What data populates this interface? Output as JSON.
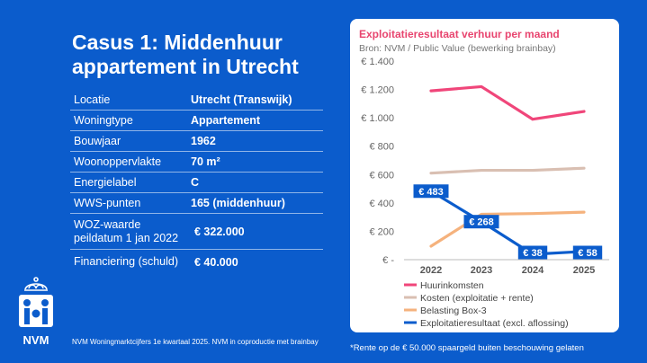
{
  "title": "Casus 1: Middenhuur appartement in Utrecht",
  "table": [
    {
      "label": "Locatie",
      "value": "Utrecht (Transwijk)"
    },
    {
      "label": "Woningtype",
      "value": "Appartement"
    },
    {
      "label": "Bouwjaar",
      "value": "1962"
    },
    {
      "label": "Woonoppervlakte",
      "value": "70 m²"
    },
    {
      "label": "Energielabel",
      "value": "C"
    },
    {
      "label": "WWS-punten",
      "value": "165 (middenhuur)"
    },
    {
      "label": "WOZ-waarde peildatum 1 jan 2022",
      "value": "€ 322.000"
    },
    {
      "label": "Financiering (schuld)",
      "value": "€ 40.000"
    }
  ],
  "footnote_left": "NVM Woningmarktcijfers 1e kwartaal 2025. NVM in coproductie met brainbay",
  "footnote_right": "*Rente op de € 50.000 spaargeld buiten beschouwing gelaten",
  "logo_text": "NVM",
  "colors": {
    "background": "#0b5ccc",
    "huur": "#f0467a",
    "kosten": "#d9bfb2",
    "belasting": "#f5b27d",
    "resultaat": "#0b5ccc"
  },
  "chart_data": {
    "type": "line",
    "title": "Exploitatieresultaat verhuur per maand",
    "subtitle": "Bron: NVM / Public Value (bewerking brainbay)",
    "categories": [
      "2022",
      "2023",
      "2024",
      "2025"
    ],
    "ylim": [
      0,
      1400
    ],
    "yticks": [
      0,
      200,
      400,
      600,
      800,
      1000,
      1200,
      1400
    ],
    "ytick_labels": [
      "€ -",
      "€ 200",
      "€ 400",
      "€ 600",
      "€ 800",
      "€ 1.000",
      "€ 1.200",
      "€ 1.400"
    ],
    "series": [
      {
        "name": "Huurinkomsten",
        "color": "#f0467a",
        "values": [
          1190,
          1220,
          990,
          1045
        ]
      },
      {
        "name": "Kosten (exploitatie + rente)",
        "color": "#d9bfb2",
        "values": [
          610,
          630,
          630,
          645
        ]
      },
      {
        "name": "Belasting Box-3",
        "color": "#f5b27d",
        "values": [
          95,
          320,
          325,
          335
        ]
      },
      {
        "name": "Exploitatieresultaat (excl. aflossing)",
        "color": "#0b5ccc",
        "values": [
          483,
          268,
          38,
          58
        ],
        "labels": [
          "€ 483",
          "€ 268",
          "€ 38",
          "€ 58"
        ]
      }
    ]
  }
}
